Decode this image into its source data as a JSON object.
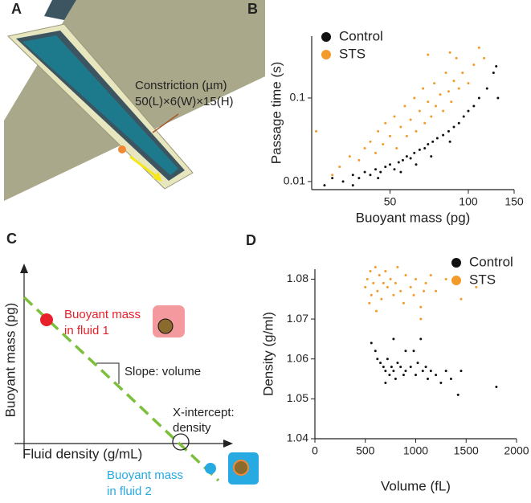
{
  "panel_a": {
    "label": "A",
    "annotation": [
      "Constriction (µm)",
      "50(L)×6(W)×15(H)"
    ]
  },
  "panel_c": {
    "label": "C",
    "y_label": "Buoyant mass (pg)",
    "x_label": "Fluid density (g/mL)",
    "fluid1": [
      "Buoyant mass",
      "in fluid 1"
    ],
    "slope": "Slope: volume",
    "intercept": [
      "X-intercept:",
      "density"
    ],
    "fluid2": [
      "Buoyant mass",
      "in fluid 2"
    ]
  },
  "chart_data": [
    {
      "type": "scatter",
      "label": "B",
      "x_label": "Buoyant mass (pg)",
      "y_label": "Passage time (s)",
      "xscale": "log",
      "yscale": "log",
      "xlim": [
        25,
        150
      ],
      "ylim": [
        0.008,
        0.55
      ],
      "xticks": [
        50,
        100,
        150
      ],
      "yticks": [
        0.01,
        0.1
      ],
      "legend": "upper left",
      "series": [
        {
          "name": "Control",
          "color": "#111111",
          "x": [
            28,
            30,
            33,
            36,
            38,
            40,
            42,
            44,
            46,
            48,
            50,
            52,
            54,
            56,
            58,
            60,
            62,
            65,
            68,
            70,
            73,
            76,
            80,
            84,
            88,
            92,
            96,
            100,
            105,
            110,
            118,
            125,
            128,
            130,
            36,
            45,
            55,
            63,
            72,
            85
          ],
          "values": [
            0.009,
            0.011,
            0.01,
            0.012,
            0.011,
            0.013,
            0.012,
            0.014,
            0.013,
            0.015,
            0.016,
            0.014,
            0.017,
            0.018,
            0.02,
            0.019,
            0.022,
            0.024,
            0.025,
            0.028,
            0.03,
            0.033,
            0.036,
            0.04,
            0.045,
            0.05,
            0.06,
            0.07,
            0.08,
            0.1,
            0.13,
            0.2,
            0.24,
            0.1,
            0.009,
            0.011,
            0.013,
            0.016,
            0.02,
            0.03
          ]
        },
        {
          "name": "STS",
          "color": "#f39a2b",
          "x": [
            26,
            32,
            35,
            38,
            40,
            42,
            44,
            45,
            47,
            48,
            50,
            52,
            53,
            55,
            57,
            58,
            60,
            62,
            63,
            65,
            67,
            68,
            70,
            72,
            74,
            75,
            78,
            80,
            82,
            84,
            86,
            88,
            90,
            92,
            95,
            100,
            105,
            110,
            115,
            85,
            70,
            30
          ],
          "values": [
            0.04,
            0.015,
            0.02,
            0.018,
            0.025,
            0.03,
            0.022,
            0.04,
            0.028,
            0.05,
            0.035,
            0.06,
            0.025,
            0.045,
            0.08,
            0.035,
            0.055,
            0.1,
            0.04,
            0.07,
            0.13,
            0.05,
            0.09,
            0.06,
            0.15,
            0.08,
            0.11,
            0.07,
            0.2,
            0.12,
            0.09,
            0.16,
            0.3,
            0.13,
            0.2,
            0.15,
            0.25,
            0.4,
            0.3,
            0.35,
            0.33,
            0.012
          ]
        }
      ]
    },
    {
      "type": "scatter",
      "label": "D",
      "x_label": "Volume (fL)",
      "y_label": "Density (g/ml)",
      "xlim": [
        0,
        2000
      ],
      "ylim": [
        1.04,
        1.0825
      ],
      "xticks": [
        0,
        500,
        1000,
        1500,
        2000
      ],
      "yticks": [
        {
          "value": 1.04,
          "label": "1.04"
        },
        {
          "value": 1.05,
          "label": "1.05"
        },
        {
          "value": 1.06,
          "label": "1.06"
        },
        {
          "value": 1.07,
          "label": "1.07"
        },
        {
          "value": 1.08,
          "label": "1.08"
        }
      ],
      "legend": "upper right",
      "series": [
        {
          "name": "Control",
          "color": "#111111",
          "x": [
            560,
            600,
            620,
            650,
            680,
            700,
            720,
            740,
            760,
            780,
            800,
            820,
            850,
            880,
            900,
            950,
            1000,
            1020,
            1050,
            1070,
            1100,
            1120,
            1150,
            1200,
            1250,
            1300,
            1350,
            1420,
            1450,
            1800,
            780,
            900,
            700,
            980
          ],
          "values": [
            1.064,
            1.062,
            1.06,
            1.059,
            1.058,
            1.057,
            1.06,
            1.056,
            1.058,
            1.057,
            1.055,
            1.059,
            1.058,
            1.056,
            1.057,
            1.058,
            1.056,
            1.059,
            1.065,
            1.057,
            1.058,
            1.055,
            1.057,
            1.056,
            1.054,
            1.057,
            1.055,
            1.051,
            1.057,
            1.053,
            1.065,
            1.062,
            1.054,
            1.062
          ]
        },
        {
          "name": "STS",
          "color": "#f39a2b",
          "x": [
            500,
            520,
            550,
            560,
            580,
            600,
            620,
            640,
            660,
            680,
            700,
            720,
            750,
            780,
            800,
            820,
            850,
            880,
            900,
            950,
            980,
            1000,
            1050,
            1080,
            1100,
            1150,
            1200,
            1300,
            1400,
            1450,
            1600,
            1050,
            540,
            610
          ],
          "values": [
            1.078,
            1.08,
            1.082,
            1.076,
            1.079,
            1.083,
            1.077,
            1.081,
            1.075,
            1.079,
            1.082,
            1.078,
            1.08,
            1.076,
            1.079,
            1.083,
            1.077,
            1.074,
            1.081,
            1.078,
            1.076,
            1.08,
            1.073,
            1.077,
            1.079,
            1.081,
            1.077,
            1.08,
            1.079,
            1.075,
            1.078,
            1.07,
            1.074,
            1.072
          ]
        }
      ]
    }
  ]
}
